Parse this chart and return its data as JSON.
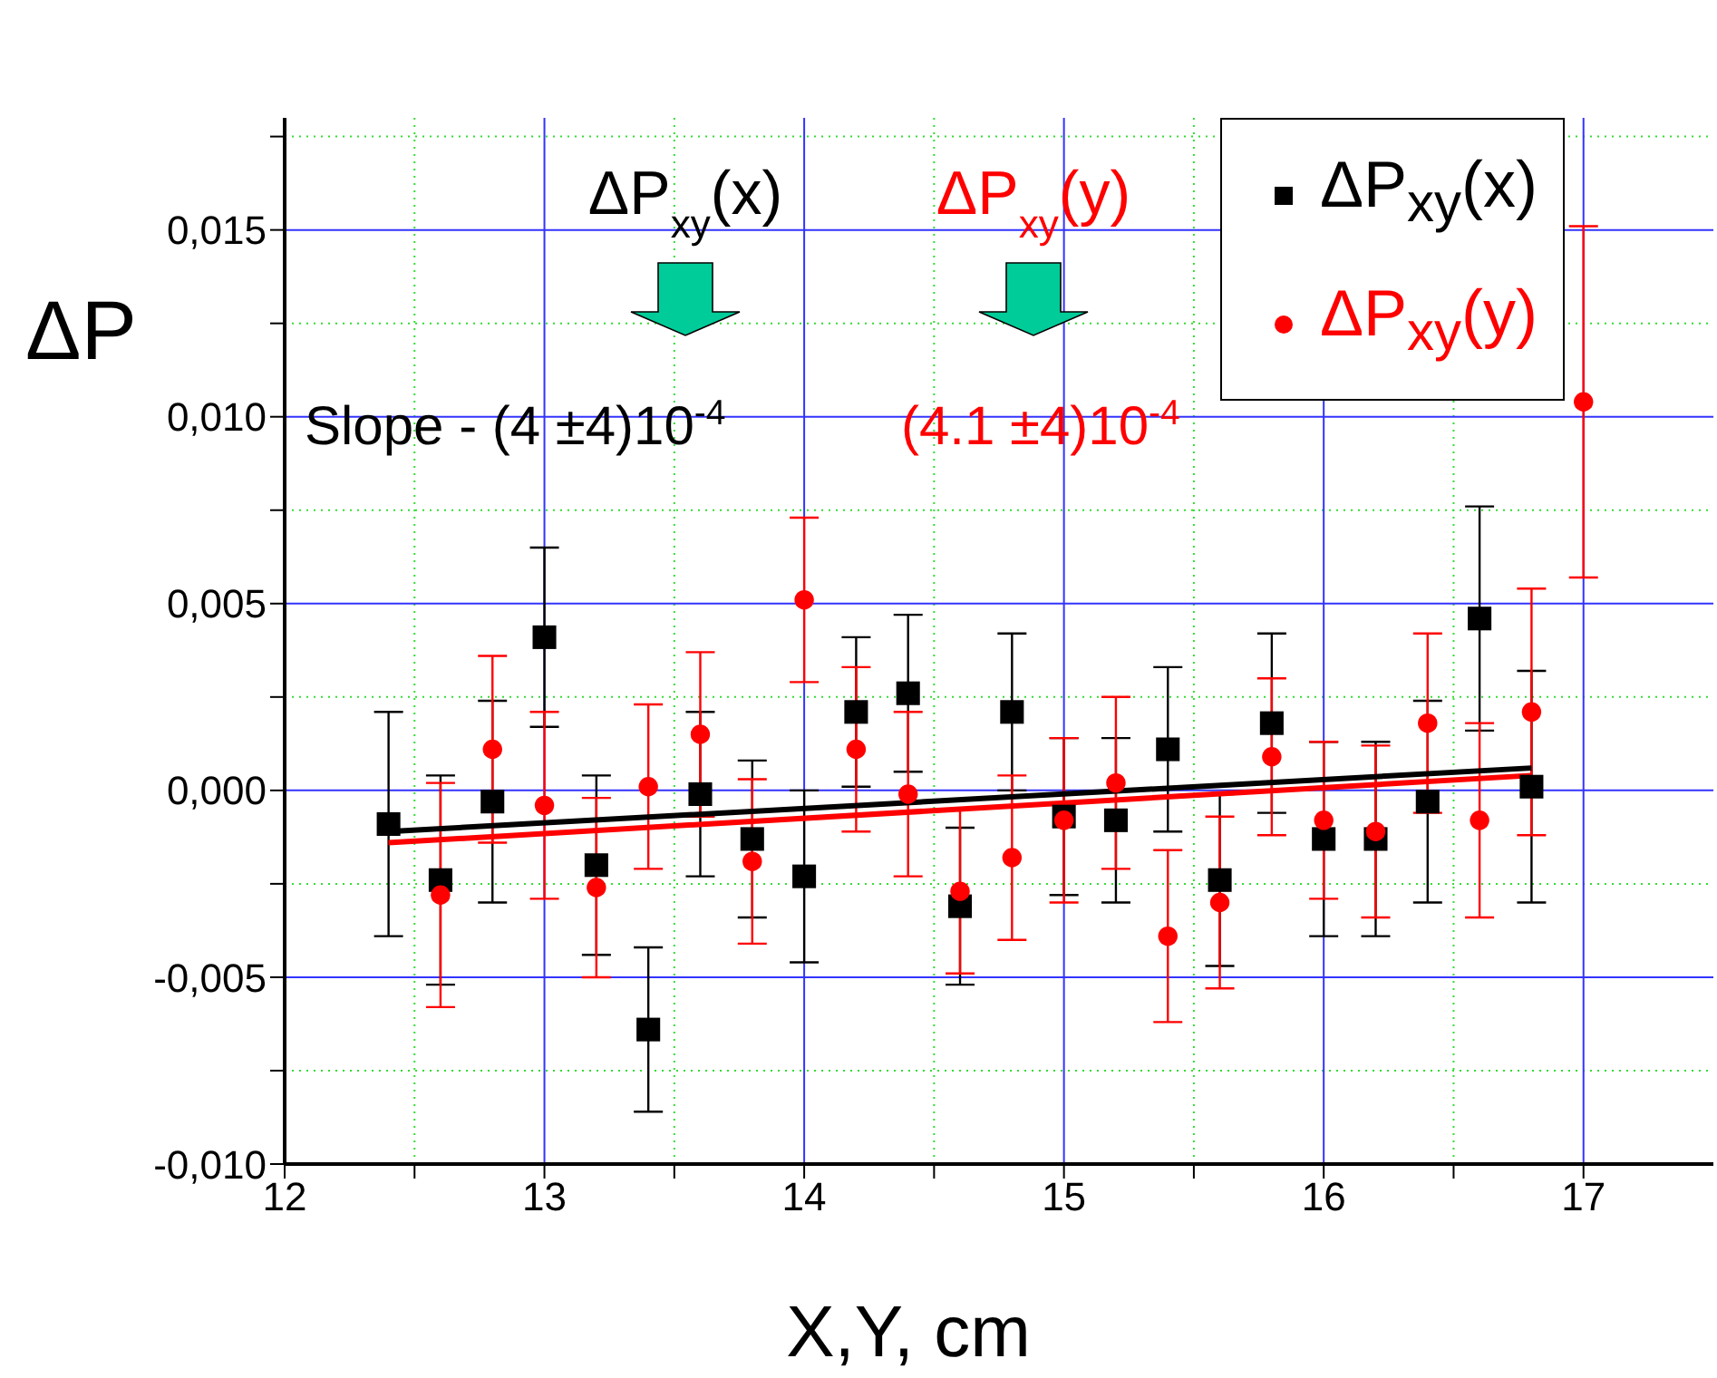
{
  "chart_data": {
    "type": "scatter",
    "xlabel": "X,Y, cm",
    "ylabel": "ΔP",
    "xlim": [
      12,
      17.5
    ],
    "xticks": [
      12,
      {
        "value": 12.5,
        "label": null
      },
      13,
      {
        "value": 13.5,
        "label": null
      },
      14,
      {
        "value": 14.5,
        "label": null
      },
      15,
      {
        "value": 15.5,
        "label": null
      },
      16,
      {
        "value": 16.5,
        "label": null
      },
      17
    ],
    "ylim": [
      -0.01,
      0.018
    ],
    "yticks": [
      {
        "value": -0.01,
        "label": "-0,010"
      },
      {
        "value": -0.0075,
        "label": null
      },
      {
        "value": -0.005,
        "label": "-0,005"
      },
      {
        "value": -0.0025,
        "label": null
      },
      {
        "value": 0,
        "label": "0,000"
      },
      {
        "value": 0.0025,
        "label": null
      },
      {
        "value": 0.005,
        "label": "0,005"
      },
      {
        "value": 0.0075,
        "label": null
      },
      {
        "value": 0.01,
        "label": "0,010"
      },
      {
        "value": 0.0125,
        "label": null
      },
      {
        "value": 0.015,
        "label": "0,015"
      },
      {
        "value": 0.0175,
        "label": null
      }
    ],
    "grid": true,
    "legend": "top right",
    "annotations": [
      "ΔP$_{xy}$(x)",
      "ΔP$_{xy}$(y)",
      "Slope - (4 ±4)10$^{-4}$",
      "(4.1 ±4)10$^{-4}$"
    ],
    "series": [
      {
        "name": "ΔP$_{xy}$(x)",
        "marker": "square",
        "color": "#000000",
        "x": [
          12.4,
          12.6,
          12.8,
          13.0,
          13.2,
          13.4,
          13.6,
          13.8,
          14.0,
          14.2,
          14.4,
          14.6,
          14.8,
          15.0,
          15.2,
          15.4,
          15.6,
          15.8,
          16.0,
          16.2,
          16.4,
          16.6,
          16.8
        ],
        "values": [
          -0.0009,
          -0.0024,
          -0.0003,
          0.0041,
          -0.002,
          -0.0064,
          -0.0001,
          -0.0013,
          -0.0023,
          0.0021,
          0.0026,
          -0.0031,
          0.0021,
          -0.0007,
          -0.0008,
          0.0011,
          -0.0024,
          0.0018,
          -0.0013,
          -0.0013,
          -0.0003,
          0.0046,
          0.0001
        ],
        "errors": [
          0.003,
          0.0028,
          0.0027,
          0.0024,
          0.0024,
          0.0022,
          0.0022,
          0.0021,
          0.0023,
          0.002,
          0.0021,
          0.0021,
          0.0021,
          0.0021,
          0.0022,
          0.0022,
          0.0023,
          0.0024,
          0.0026,
          0.0026,
          0.0027,
          0.003,
          0.0031
        ]
      },
      {
        "name": "ΔP$_{xy}$(y)",
        "marker": "circle",
        "color": "#ff0000",
        "x": [
          12.6,
          12.8,
          13.0,
          13.2,
          13.4,
          13.6,
          13.8,
          14.0,
          14.2,
          14.4,
          14.6,
          14.8,
          15.0,
          15.2,
          15.4,
          15.6,
          15.8,
          16.0,
          16.2,
          16.4,
          16.6,
          16.8,
          17.0
        ],
        "values": [
          -0.0028,
          0.0011,
          -0.0004,
          -0.0026,
          0.0001,
          0.0015,
          -0.0019,
          0.0051,
          0.0011,
          -0.0001,
          -0.0027,
          -0.0018,
          -0.0008,
          0.0002,
          -0.0039,
          -0.003,
          0.0009,
          -0.0008,
          -0.0011,
          0.0018,
          -0.0008,
          0.0021,
          0.0104
        ],
        "errors": [
          0.003,
          0.0025,
          0.0025,
          0.0024,
          0.0022,
          0.0022,
          0.0022,
          0.0022,
          0.0022,
          0.0022,
          0.0022,
          0.0022,
          0.0022,
          0.0023,
          0.0023,
          0.0023,
          0.0021,
          0.0021,
          0.0023,
          0.0024,
          0.0026,
          0.0033,
          0.0047
        ]
      },
      {
        "type": "line",
        "color": "#000000",
        "x": [
          12.4,
          16.8
        ],
        "values": [
          -0.0011,
          0.0006
        ]
      },
      {
        "type": "line",
        "color": "#ff0000",
        "x": [
          12.4,
          16.8
        ],
        "values": [
          -0.0014,
          0.0004
        ]
      }
    ]
  }
}
